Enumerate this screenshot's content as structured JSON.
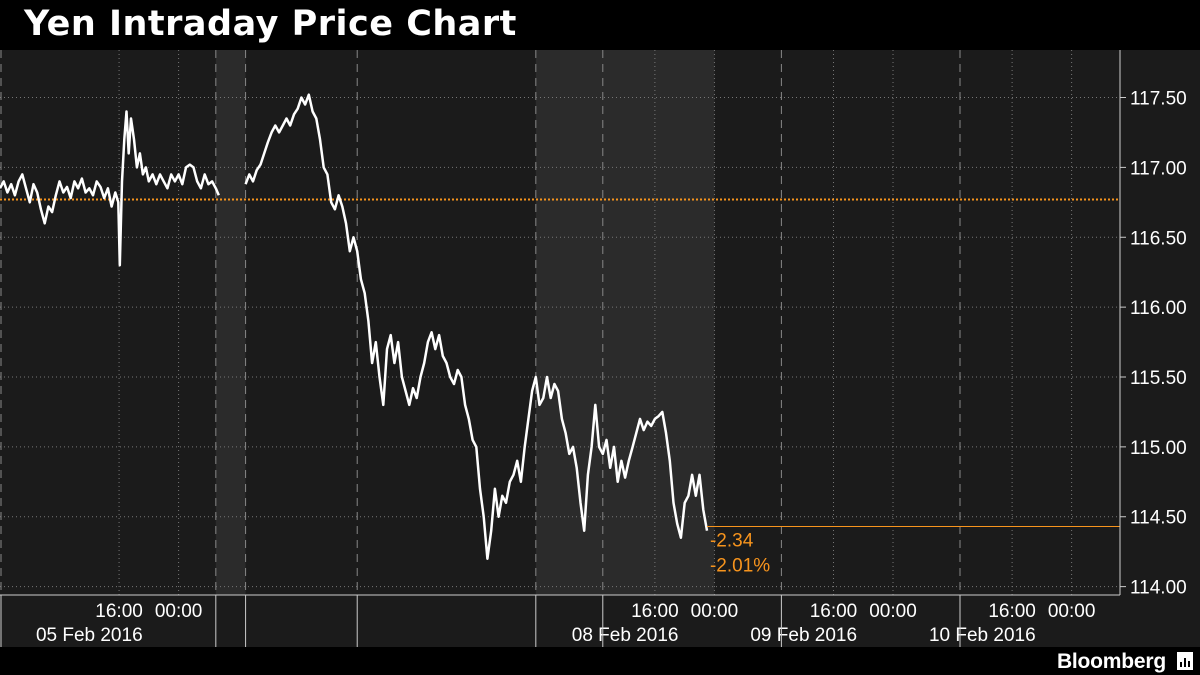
{
  "header": {
    "title": "Yen Intraday Price Chart"
  },
  "footer": {
    "brand": "Bloomberg"
  },
  "colors": {
    "background": "#000000",
    "plot": "#1b1b1b",
    "shade": "#2b2b2b",
    "line": "#ffffff",
    "accent": "#f7941d",
    "grid": "#777777"
  },
  "chart_data": {
    "type": "line",
    "title": "Yen Intraday Price Chart",
    "xlabel": "",
    "ylabel": "",
    "ylim": [
      113.94,
      117.84
    ],
    "y_ticks": [
      "114.00",
      "114.50",
      "115.00",
      "115.50",
      "116.00",
      "116.50",
      "117.00",
      "117.50"
    ],
    "x_ticks": [
      {
        "t": 16,
        "label": "16:00"
      },
      {
        "t": 24,
        "label": "00:00"
      },
      {
        "t": 88,
        "label": "16:00"
      },
      {
        "t": 96,
        "label": "00:00"
      },
      {
        "t": 112,
        "label": "16:00"
      },
      {
        "t": 120,
        "label": "00:00"
      },
      {
        "t": 136,
        "label": "16:00"
      },
      {
        "t": 144,
        "label": "00:00"
      }
    ],
    "date_labels": [
      {
        "t": 12,
        "label": "05 Feb 2016"
      },
      {
        "t": 84,
        "label": "08 Feb 2016"
      },
      {
        "t": 108,
        "label": "09 Feb 2016"
      },
      {
        "t": 132,
        "label": "10 Feb 2016"
      }
    ],
    "day_separators": [
      0,
      29,
      33,
      48,
      72,
      81,
      105,
      129
    ],
    "weekend_shade": [
      29,
      33
    ],
    "highlight_shade": [
      72,
      96
    ],
    "reference_line": 116.77,
    "last_price": 114.43,
    "change_abs": "-2.34",
    "change_pct": "-2.01%",
    "series": [
      {
        "points": [
          [
            0.0,
            116.85
          ],
          [
            0.5,
            116.9
          ],
          [
            1.0,
            116.82
          ],
          [
            1.5,
            116.88
          ],
          [
            2.0,
            116.8
          ],
          [
            2.5,
            116.9
          ],
          [
            3.0,
            116.95
          ],
          [
            3.5,
            116.85
          ],
          [
            4.0,
            116.75
          ],
          [
            4.5,
            116.88
          ],
          [
            5.0,
            116.82
          ],
          [
            5.5,
            116.7
          ],
          [
            6.0,
            116.6
          ],
          [
            6.5,
            116.72
          ],
          [
            7.0,
            116.68
          ],
          [
            7.5,
            116.8
          ],
          [
            8.0,
            116.9
          ],
          [
            8.5,
            116.82
          ],
          [
            9.0,
            116.86
          ],
          [
            9.5,
            116.78
          ],
          [
            10.0,
            116.9
          ],
          [
            10.5,
            116.85
          ],
          [
            11.0,
            116.92
          ],
          [
            11.5,
            116.82
          ],
          [
            12.0,
            116.85
          ],
          [
            12.5,
            116.8
          ],
          [
            13.0,
            116.9
          ],
          [
            13.5,
            116.86
          ],
          [
            14.0,
            116.78
          ],
          [
            14.5,
            116.85
          ],
          [
            15.0,
            116.72
          ],
          [
            15.5,
            116.82
          ],
          [
            15.9,
            116.75
          ],
          [
            16.1,
            116.3
          ],
          [
            16.4,
            116.9
          ],
          [
            16.7,
            117.2
          ],
          [
            17.0,
            117.4
          ],
          [
            17.3,
            117.1
          ],
          [
            17.6,
            117.35
          ],
          [
            18.0,
            117.2
          ],
          [
            18.4,
            117.0
          ],
          [
            18.8,
            117.1
          ],
          [
            19.2,
            116.95
          ],
          [
            19.6,
            117.0
          ],
          [
            20.0,
            116.9
          ],
          [
            20.5,
            116.95
          ],
          [
            21.0,
            116.88
          ],
          [
            21.5,
            116.95
          ],
          [
            22.0,
            116.9
          ],
          [
            22.5,
            116.85
          ],
          [
            23.0,
            116.95
          ],
          [
            23.5,
            116.9
          ],
          [
            24.0,
            116.95
          ],
          [
            24.5,
            116.88
          ],
          [
            25.0,
            117.0
          ],
          [
            25.5,
            117.02
          ],
          [
            26.0,
            117.0
          ],
          [
            26.5,
            116.9
          ],
          [
            27.0,
            116.85
          ],
          [
            27.5,
            116.95
          ],
          [
            28.0,
            116.88
          ],
          [
            28.5,
            116.9
          ],
          [
            29.0,
            116.85
          ],
          [
            29.4,
            116.8
          ],
          [
            33.0,
            116.88
          ],
          [
            33.5,
            116.95
          ],
          [
            34.0,
            116.9
          ],
          [
            34.5,
            116.98
          ],
          [
            35.0,
            117.02
          ],
          [
            35.5,
            117.1
          ],
          [
            36.0,
            117.18
          ],
          [
            36.5,
            117.25
          ],
          [
            37.0,
            117.3
          ],
          [
            37.5,
            117.25
          ],
          [
            38.0,
            117.3
          ],
          [
            38.5,
            117.35
          ],
          [
            39.0,
            117.3
          ],
          [
            39.5,
            117.38
          ],
          [
            40.0,
            117.42
          ],
          [
            40.5,
            117.5
          ],
          [
            41.0,
            117.45
          ],
          [
            41.5,
            117.52
          ],
          [
            42.0,
            117.4
          ],
          [
            42.5,
            117.35
          ],
          [
            43.0,
            117.2
          ],
          [
            43.5,
            117.0
          ],
          [
            44.0,
            116.95
          ],
          [
            44.5,
            116.75
          ],
          [
            45.0,
            116.7
          ],
          [
            45.5,
            116.8
          ],
          [
            46.0,
            116.72
          ],
          [
            46.5,
            116.6
          ],
          [
            47.0,
            116.4
          ],
          [
            47.5,
            116.5
          ],
          [
            48.0,
            116.4
          ],
          [
            48.5,
            116.2
          ],
          [
            49.0,
            116.1
          ],
          [
            49.5,
            115.9
          ],
          [
            50.0,
            115.6
          ],
          [
            50.5,
            115.75
          ],
          [
            51.0,
            115.5
          ],
          [
            51.5,
            115.3
          ],
          [
            52.0,
            115.7
          ],
          [
            52.5,
            115.8
          ],
          [
            53.0,
            115.6
          ],
          [
            53.5,
            115.75
          ],
          [
            54.0,
            115.5
          ],
          [
            54.5,
            115.4
          ],
          [
            55.0,
            115.3
          ],
          [
            55.5,
            115.42
          ],
          [
            56.0,
            115.35
          ],
          [
            56.5,
            115.5
          ],
          [
            57.0,
            115.6
          ],
          [
            57.5,
            115.75
          ],
          [
            58.0,
            115.82
          ],
          [
            58.5,
            115.7
          ],
          [
            59.0,
            115.8
          ],
          [
            59.5,
            115.65
          ],
          [
            60.0,
            115.6
          ],
          [
            60.5,
            115.5
          ],
          [
            61.0,
            115.45
          ],
          [
            61.5,
            115.55
          ],
          [
            62.0,
            115.5
          ],
          [
            62.5,
            115.3
          ],
          [
            63.0,
            115.2
          ],
          [
            63.5,
            115.05
          ],
          [
            64.0,
            115.0
          ],
          [
            64.5,
            114.7
          ],
          [
            65.0,
            114.5
          ],
          [
            65.5,
            114.2
          ],
          [
            66.0,
            114.4
          ],
          [
            66.5,
            114.7
          ],
          [
            67.0,
            114.5
          ],
          [
            67.5,
            114.65
          ],
          [
            68.0,
            114.6
          ],
          [
            68.5,
            114.75
          ],
          [
            69.0,
            114.8
          ],
          [
            69.5,
            114.9
          ],
          [
            70.0,
            114.75
          ],
          [
            70.5,
            115.0
          ],
          [
            71.0,
            115.2
          ],
          [
            71.5,
            115.4
          ],
          [
            72.0,
            115.5
          ],
          [
            72.5,
            115.3
          ],
          [
            73.0,
            115.35
          ],
          [
            73.5,
            115.5
          ],
          [
            74.0,
            115.35
          ],
          [
            74.5,
            115.45
          ],
          [
            75.0,
            115.4
          ],
          [
            75.5,
            115.2
          ],
          [
            76.0,
            115.1
          ],
          [
            76.5,
            114.95
          ],
          [
            77.0,
            115.0
          ],
          [
            77.5,
            114.85
          ],
          [
            78.0,
            114.6
          ],
          [
            78.5,
            114.4
          ],
          [
            79.0,
            114.8
          ],
          [
            79.5,
            115.0
          ],
          [
            80.0,
            115.3
          ],
          [
            80.5,
            115.0
          ],
          [
            81.0,
            114.95
          ],
          [
            81.5,
            115.05
          ],
          [
            82.0,
            114.85
          ],
          [
            82.5,
            115.0
          ],
          [
            83.0,
            114.75
          ],
          [
            83.5,
            114.9
          ],
          [
            84.0,
            114.78
          ],
          [
            84.5,
            114.9
          ],
          [
            85.0,
            115.0
          ],
          [
            85.5,
            115.1
          ],
          [
            86.0,
            115.2
          ],
          [
            86.5,
            115.12
          ],
          [
            87.0,
            115.18
          ],
          [
            87.5,
            115.15
          ],
          [
            88.0,
            115.2
          ],
          [
            88.5,
            115.22
          ],
          [
            89.0,
            115.25
          ],
          [
            89.5,
            115.1
          ],
          [
            90.0,
            114.9
          ],
          [
            90.5,
            114.6
          ],
          [
            91.0,
            114.45
          ],
          [
            91.5,
            114.35
          ],
          [
            92.0,
            114.6
          ],
          [
            92.5,
            114.65
          ],
          [
            93.0,
            114.8
          ],
          [
            93.5,
            114.65
          ],
          [
            94.0,
            114.8
          ],
          [
            94.5,
            114.55
          ],
          [
            95.0,
            114.4
          ]
        ]
      }
    ]
  }
}
